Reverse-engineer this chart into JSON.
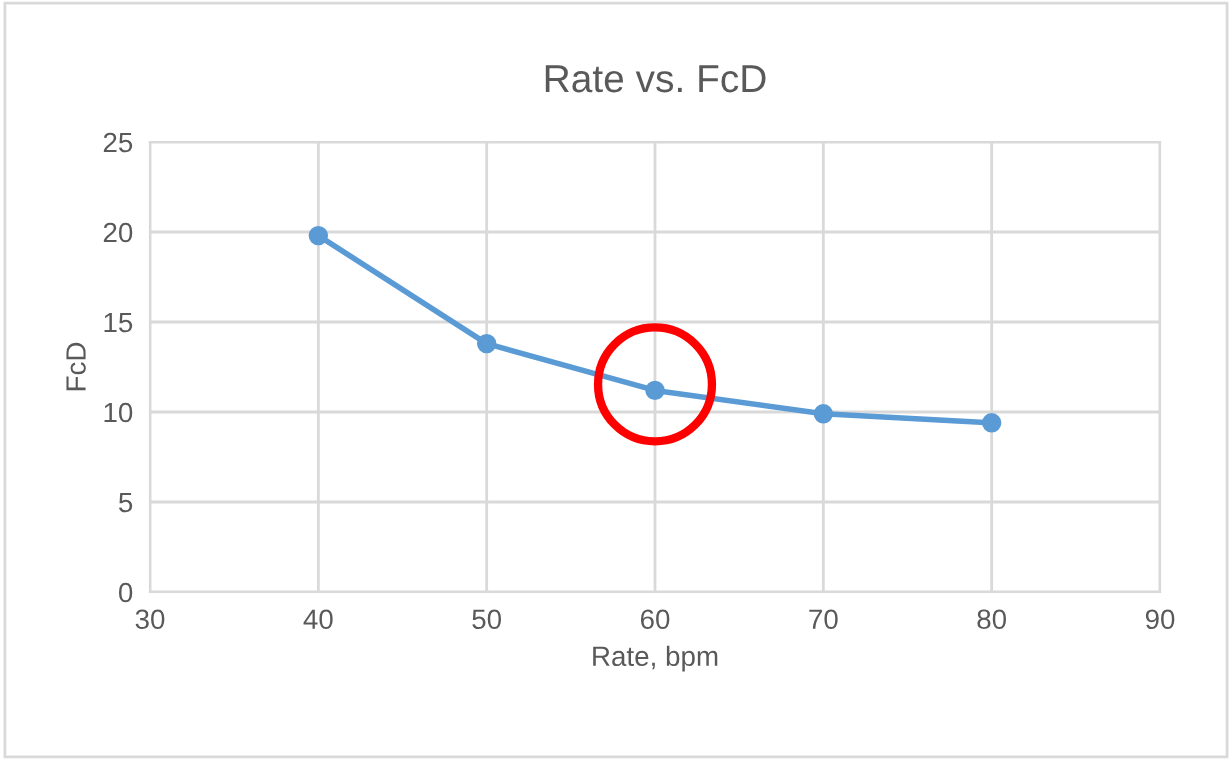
{
  "chart_data": {
    "type": "line",
    "title": "Rate vs. FcD",
    "xlabel": "Rate, bpm",
    "ylabel": "FcD",
    "x": [
      40,
      50,
      60,
      70,
      80
    ],
    "series": [
      {
        "color": "#5b9bd5",
        "values": [
          19.8,
          13.8,
          11.2,
          9.9,
          9.4
        ]
      }
    ],
    "xlim": [
      30,
      90
    ],
    "xticks": [
      30,
      40,
      50,
      60,
      70,
      80,
      90
    ],
    "ylim": [
      0,
      25
    ],
    "yticks": [
      0,
      5,
      10,
      15,
      20,
      25
    ],
    "grid": true,
    "marker": "circle",
    "line_style": "solid"
  }
}
